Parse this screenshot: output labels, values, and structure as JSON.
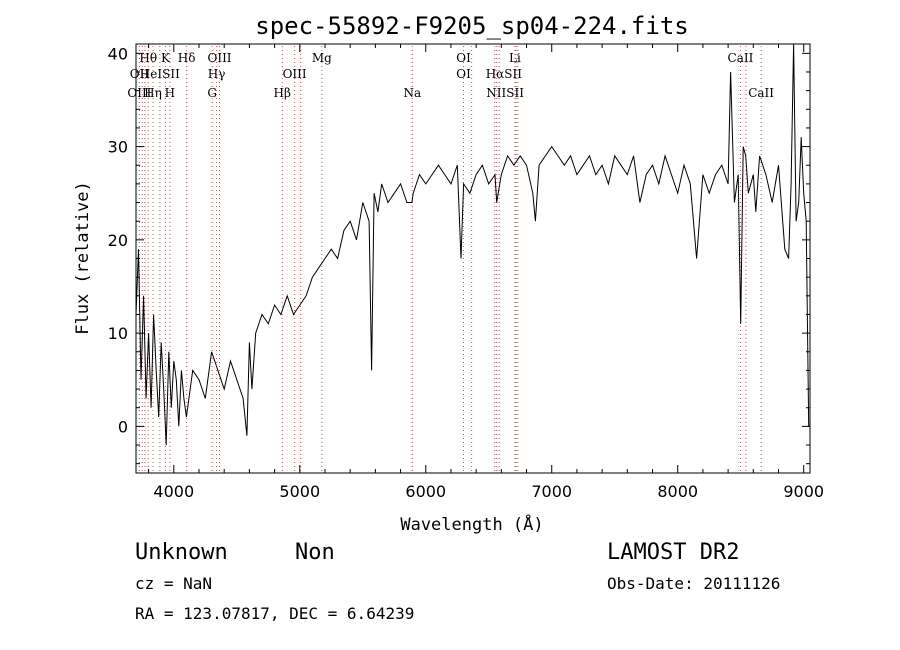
{
  "chart_data": {
    "type": "line",
    "title": "spec-55892-F9205_sp04-224.fits",
    "xlabel": "Wavelength (Å)",
    "ylabel": "Flux (relative)",
    "xlim": [
      3700,
      9050
    ],
    "ylim": [
      -5,
      41
    ],
    "xticks": [
      4000,
      5000,
      6000,
      7000,
      8000,
      9000
    ],
    "yticks": [
      0,
      10,
      20,
      30,
      40
    ],
    "grid": false,
    "series": [
      {
        "x": [
          3700,
          3720,
          3740,
          3760,
          3780,
          3800,
          3820,
          3840,
          3860,
          3880,
          3900,
          3920,
          3940,
          3960,
          3980,
          4000,
          4020,
          4040,
          4060,
          4080,
          4100,
          4150,
          4200,
          4250,
          4300,
          4350,
          4400,
          4450,
          4500,
          4550,
          4580,
          4600,
          4620,
          4650,
          4700,
          4750,
          4800,
          4850,
          4900,
          4950,
          5000,
          5050,
          5100,
          5150,
          5200,
          5250,
          5300,
          5350,
          5400,
          5450,
          5500,
          5550,
          5570,
          5590,
          5620,
          5650,
          5700,
          5750,
          5800,
          5850,
          5890,
          5900,
          5950,
          6000,
          6050,
          6100,
          6150,
          6200,
          6250,
          6280,
          6300,
          6350,
          6400,
          6450,
          6500,
          6550,
          6563,
          6600,
          6650,
          6700,
          6750,
          6800,
          6850,
          6870,
          6900,
          6950,
          7000,
          7050,
          7100,
          7150,
          7200,
          7250,
          7300,
          7350,
          7400,
          7450,
          7500,
          7550,
          7600,
          7650,
          7700,
          7750,
          7800,
          7850,
          7900,
          7950,
          8000,
          8050,
          8100,
          8150,
          8200,
          8250,
          8300,
          8350,
          8400,
          8420,
          8450,
          8480,
          8500,
          8520,
          8540,
          8560,
          8600,
          8620,
          8650,
          8700,
          8750,
          8800,
          8850,
          8880,
          8900,
          8920,
          8940,
          8960,
          8980,
          9000,
          9020,
          9040
        ],
        "y": [
          12,
          19,
          5,
          14,
          3,
          10,
          2,
          12,
          6,
          1,
          9,
          4,
          -2,
          8,
          2,
          7,
          5,
          0,
          6,
          3,
          1,
          6,
          5,
          3,
          8,
          6,
          4,
          7,
          5,
          3,
          -1,
          9,
          4,
          10,
          12,
          11,
          13,
          12,
          14,
          12,
          13,
          14,
          16,
          17,
          18,
          19,
          18,
          21,
          22,
          20,
          24,
          22,
          6,
          25,
          23,
          26,
          24,
          25,
          26,
          24,
          24,
          25,
          27,
          26,
          27,
          28,
          27,
          26,
          28,
          18,
          26,
          25,
          27,
          28,
          26,
          27,
          24,
          27,
          29,
          28,
          29,
          28,
          25,
          22,
          28,
          29,
          30,
          29,
          28,
          29,
          27,
          28,
          29,
          27,
          28,
          26,
          29,
          28,
          27,
          29,
          24,
          27,
          28,
          26,
          29,
          27,
          25,
          28,
          26,
          18,
          27,
          25,
          27,
          28,
          26,
          38,
          24,
          27,
          11,
          30,
          29,
          25,
          27,
          23,
          29,
          27,
          24,
          28,
          19,
          18,
          26,
          41,
          22,
          24,
          31,
          25,
          22,
          0
        ]
      }
    ],
    "line_labels": [
      {
        "name": "Hθ",
        "wl": 3797,
        "row": 1
      },
      {
        "name": "OII",
        "wl": 3727,
        "row": 2
      },
      {
        "name": "OIII",
        "wl": 3727,
        "row": 3
      },
      {
        "name": "K",
        "wl": 3934,
        "row": 1
      },
      {
        "name": "HeISII",
        "wl": 3889,
        "row": 2
      },
      {
        "name": "Hη",
        "wl": 3835,
        "row": 3
      },
      {
        "name": "H",
        "wl": 3969,
        "row": 3
      },
      {
        "name": "Hδ",
        "wl": 4102,
        "row": 1
      },
      {
        "name": "OIII",
        "wl": 4363,
        "row": 1
      },
      {
        "name": "Hγ",
        "wl": 4340,
        "row": 2
      },
      {
        "name": "G",
        "wl": 4305,
        "row": 3
      },
      {
        "name": "Mg",
        "wl": 5175,
        "row": 1
      },
      {
        "name": "OIII",
        "wl": 4959,
        "row": 2
      },
      {
        "name": "Hβ",
        "wl": 4861,
        "row": 3
      },
      {
        "name": "Na",
        "wl": 5893,
        "row": 3
      },
      {
        "name": "OI",
        "wl": 6300,
        "row": 1
      },
      {
        "name": "OI",
        "wl": 6300,
        "row": 2
      },
      {
        "name": "Li",
        "wl": 6708,
        "row": 1
      },
      {
        "name": "HαSII",
        "wl": 6620,
        "row": 2
      },
      {
        "name": "NIISII",
        "wl": 6630,
        "row": 3
      },
      {
        "name": "CaII",
        "wl": 8498,
        "row": 1
      },
      {
        "name": "CaII",
        "wl": 8662,
        "row": 3
      }
    ],
    "line_marks": [
      3727,
      3750,
      3771,
      3797,
      3835,
      3889,
      3934,
      3969,
      4102,
      4305,
      4340,
      4363,
      4861,
      4959,
      5007,
      5175,
      5893,
      6300,
      6364,
      6548,
      6563,
      6583,
      6708,
      6717,
      6731,
      8498,
      8542,
      8662
    ]
  },
  "info": {
    "class": "Unknown",
    "subclass": "Non",
    "survey": "LAMOST DR2",
    "cz": "cz = NaN",
    "obs_date": "Obs-Date: 20111126",
    "radec": "RA = 123.07817, DEC =   6.64239"
  },
  "colors": {
    "spectrum": "#000000",
    "marker": "#c05050",
    "axis": "#000000"
  }
}
